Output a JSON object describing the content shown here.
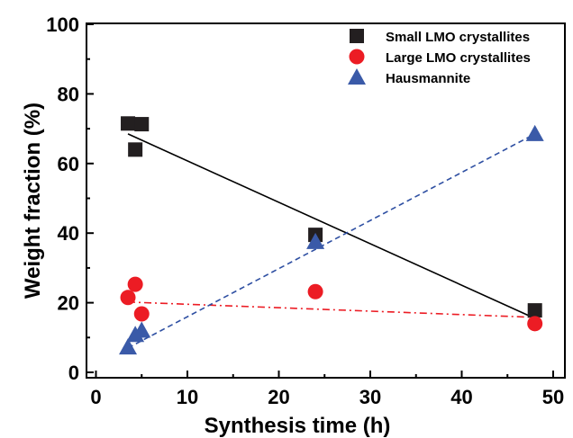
{
  "chart_data": {
    "type": "scatter",
    "xlabel": "Synthesis time (h)",
    "ylabel": "Weight fraction (%)",
    "xlim": [
      0,
      52
    ],
    "ylim": [
      0,
      100
    ],
    "x_ticks": [
      "0",
      "10",
      "20",
      "30",
      "40",
      "50"
    ],
    "y_ticks": [
      "0",
      "20",
      "40",
      "60",
      "80",
      "100"
    ],
    "grid": false,
    "legend_position": "top-right",
    "series": [
      {
        "name": "Small LMO crystallites",
        "marker": "square",
        "color": "#231f20",
        "points": [
          {
            "x": 3.5,
            "y": 71.5
          },
          {
            "x": 4.3,
            "y": 64.0
          },
          {
            "x": 5.0,
            "y": 71.3
          },
          {
            "x": 24.0,
            "y": 39.5
          },
          {
            "x": 48.0,
            "y": 17.8
          }
        ],
        "trend": {
          "style": "solid",
          "color": "#000000",
          "from": {
            "x": 3.5,
            "y": 68.5
          },
          "to": {
            "x": 48.0,
            "y": 15.5
          }
        }
      },
      {
        "name": "Large LMO crystallites",
        "marker": "circle",
        "color": "#ec1c24",
        "points": [
          {
            "x": 3.5,
            "y": 21.5
          },
          {
            "x": 4.3,
            "y": 25.3
          },
          {
            "x": 5.0,
            "y": 16.8
          },
          {
            "x": 24.0,
            "y": 23.2
          },
          {
            "x": 48.0,
            "y": 14.0
          }
        ],
        "trend": {
          "style": "dash-dot",
          "color": "#ec1c24",
          "from": {
            "x": 3.5,
            "y": 20.2
          },
          "to": {
            "x": 48.0,
            "y": 15.8
          }
        }
      },
      {
        "name": "Hausmannite",
        "marker": "triangle",
        "color": "#3a5aa8",
        "points": [
          {
            "x": 3.5,
            "y": 7.2
          },
          {
            "x": 4.3,
            "y": 10.8
          },
          {
            "x": 5.0,
            "y": 12.0
          },
          {
            "x": 24.0,
            "y": 37.5
          },
          {
            "x": 48.0,
            "y": 68.5
          }
        ],
        "trend": {
          "style": "dashed",
          "color": "#2e4fa2",
          "from": {
            "x": 3.5,
            "y": 7.0
          },
          "to": {
            "x": 48.0,
            "y": 68.5
          }
        }
      }
    ]
  }
}
